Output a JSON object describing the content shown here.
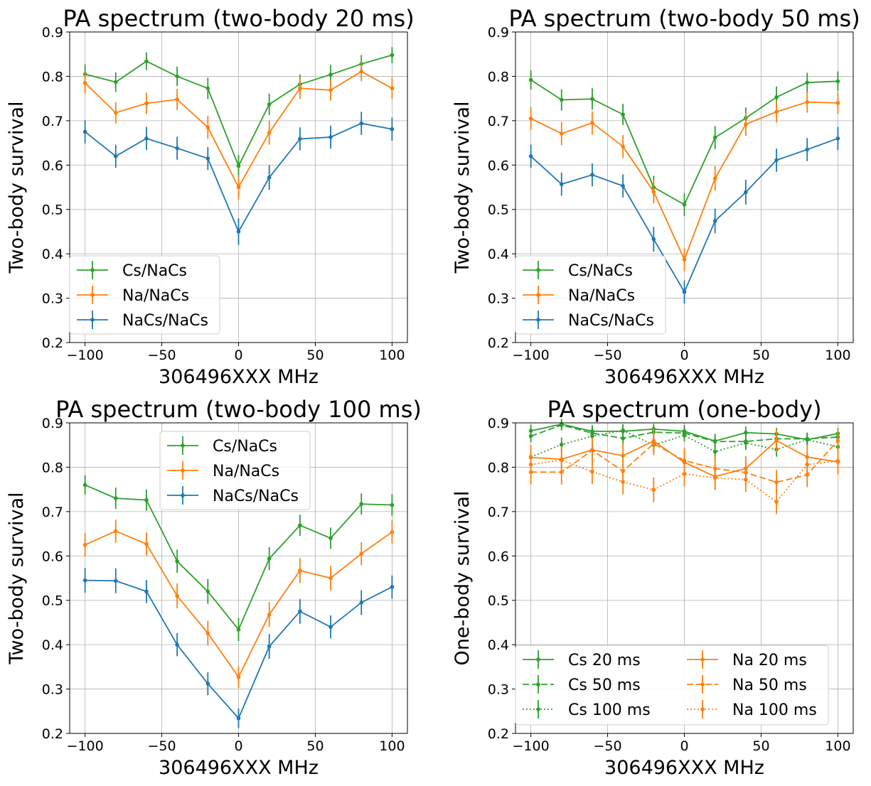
{
  "chart_data": [
    {
      "type": "line",
      "title": "PA spectrum (two-body 20 ms)",
      "xlabel": "306496XXX MHz",
      "ylabel": "Two-body survival",
      "xlim": [
        -110,
        110
      ],
      "ylim": [
        0.2,
        0.9
      ],
      "xticks": [
        -100,
        -50,
        0,
        50,
        100
      ],
      "xtick_labels": [
        "−100",
        "−50",
        "0",
        "50",
        "100"
      ],
      "yticks": [
        0.2,
        0.3,
        0.4,
        0.5,
        0.6,
        0.7,
        0.8,
        0.9
      ],
      "ytick_labels": [
        "0.2",
        "0.3",
        "0.4",
        "0.5",
        "0.6",
        "0.7",
        "0.8",
        "0.9"
      ],
      "grid": true,
      "legend": {
        "position": "lower-left",
        "columns": 1
      },
      "x": [
        -100,
        -80,
        -60,
        -40,
        -20,
        0,
        20,
        40,
        60,
        80,
        100
      ],
      "series": [
        {
          "name": "Cs/NaCs",
          "color": "#2ca02c",
          "linestyle": "solid",
          "values": [
            0.805,
            0.787,
            0.834,
            0.8,
            0.773,
            0.598,
            0.737,
            0.782,
            0.804,
            0.828,
            0.848
          ],
          "errors": [
            0.022,
            0.022,
            0.02,
            0.022,
            0.024,
            0.025,
            0.024,
            0.022,
            0.022,
            0.02,
            0.018
          ]
        },
        {
          "name": "Na/NaCs",
          "color": "#ff7f0e",
          "linestyle": "solid",
          "values": [
            0.785,
            0.718,
            0.739,
            0.748,
            0.685,
            0.55,
            0.673,
            0.773,
            0.769,
            0.811,
            0.773
          ],
          "errors": [
            0.024,
            0.024,
            0.024,
            0.024,
            0.026,
            0.028,
            0.027,
            0.024,
            0.024,
            0.022,
            0.024
          ]
        },
        {
          "name": "NaCs/NaCs",
          "color": "#1f77b4",
          "linestyle": "solid",
          "values": [
            0.675,
            0.62,
            0.66,
            0.638,
            0.615,
            0.45,
            0.572,
            0.659,
            0.663,
            0.694,
            0.681
          ],
          "errors": [
            0.026,
            0.026,
            0.026,
            0.026,
            0.026,
            0.03,
            0.028,
            0.026,
            0.026,
            0.026,
            0.026
          ]
        }
      ]
    },
    {
      "type": "line",
      "title": "PA spectrum (two-body 50 ms)",
      "xlabel": "306496XXX MHz",
      "ylabel": "Two-body survival",
      "xlim": [
        -110,
        110
      ],
      "ylim": [
        0.2,
        0.9
      ],
      "xticks": [
        -100,
        -50,
        0,
        50,
        100
      ],
      "xtick_labels": [
        "−100",
        "−50",
        "0",
        "50",
        "100"
      ],
      "yticks": [
        0.2,
        0.3,
        0.4,
        0.5,
        0.6,
        0.7,
        0.8,
        0.9
      ],
      "ytick_labels": [
        "0.2",
        "0.3",
        "0.4",
        "0.5",
        "0.6",
        "0.7",
        "0.8",
        "0.9"
      ],
      "grid": true,
      "legend": {
        "position": "lower-left",
        "columns": 1
      },
      "x": [
        -100,
        -80,
        -60,
        -40,
        -20,
        0,
        20,
        40,
        60,
        80,
        100
      ],
      "series": [
        {
          "name": "Cs/NaCs",
          "color": "#2ca02c",
          "linestyle": "solid",
          "values": [
            0.792,
            0.747,
            0.749,
            0.714,
            0.55,
            0.511,
            0.662,
            0.706,
            0.753,
            0.786,
            0.789
          ],
          "errors": [
            0.022,
            0.024,
            0.024,
            0.024,
            0.026,
            0.026,
            0.026,
            0.024,
            0.024,
            0.022,
            0.022
          ]
        },
        {
          "name": "Na/NaCs",
          "color": "#ff7f0e",
          "linestyle": "solid",
          "values": [
            0.705,
            0.671,
            0.695,
            0.642,
            0.54,
            0.387,
            0.57,
            0.692,
            0.72,
            0.742,
            0.74
          ],
          "errors": [
            0.026,
            0.026,
            0.026,
            0.026,
            0.026,
            0.026,
            0.028,
            0.026,
            0.024,
            0.024,
            0.024
          ]
        },
        {
          "name": "NaCs/NaCs",
          "color": "#1f77b4",
          "linestyle": "solid",
          "values": [
            0.62,
            0.557,
            0.578,
            0.553,
            0.433,
            0.314,
            0.474,
            0.539,
            0.611,
            0.635,
            0.66
          ],
          "errors": [
            0.026,
            0.026,
            0.026,
            0.026,
            0.028,
            0.026,
            0.028,
            0.028,
            0.026,
            0.026,
            0.026
          ]
        }
      ]
    },
    {
      "type": "line",
      "title": "PA spectrum (two-body 100 ms)",
      "xlabel": "306496XXX MHz",
      "ylabel": "Two-body survival",
      "xlim": [
        -110,
        110
      ],
      "ylim": [
        0.2,
        0.9
      ],
      "xticks": [
        -100,
        -50,
        0,
        50,
        100
      ],
      "xtick_labels": [
        "−100",
        "−50",
        "0",
        "50",
        "100"
      ],
      "yticks": [
        0.2,
        0.3,
        0.4,
        0.5,
        0.6,
        0.7,
        0.8,
        0.9
      ],
      "ytick_labels": [
        "0.2",
        "0.3",
        "0.4",
        "0.5",
        "0.6",
        "0.7",
        "0.8",
        "0.9"
      ],
      "grid": true,
      "legend": {
        "position": "upper-center",
        "columns": 1
      },
      "x": [
        -100,
        -80,
        -60,
        -40,
        -20,
        0,
        20,
        40,
        60,
        80,
        100
      ],
      "series": [
        {
          "name": "Cs/NaCs",
          "color": "#2ca02c",
          "linestyle": "solid",
          "values": [
            0.76,
            0.73,
            0.726,
            0.588,
            0.52,
            0.434,
            0.594,
            0.669,
            0.64,
            0.717,
            0.715
          ],
          "errors": [
            0.022,
            0.024,
            0.024,
            0.026,
            0.028,
            0.026,
            0.026,
            0.024,
            0.024,
            0.024,
            0.024
          ]
        },
        {
          "name": "Na/NaCs",
          "color": "#ff7f0e",
          "linestyle": "solid",
          "values": [
            0.625,
            0.656,
            0.627,
            0.51,
            0.426,
            0.327,
            0.468,
            0.567,
            0.55,
            0.605,
            0.654
          ],
          "errors": [
            0.026,
            0.026,
            0.026,
            0.028,
            0.028,
            0.024,
            0.028,
            0.028,
            0.028,
            0.026,
            0.026
          ]
        },
        {
          "name": "NaCs/NaCs",
          "color": "#1f77b4",
          "linestyle": "solid",
          "values": [
            0.545,
            0.544,
            0.52,
            0.4,
            0.312,
            0.234,
            0.396,
            0.475,
            0.44,
            0.495,
            0.53
          ],
          "errors": [
            0.028,
            0.028,
            0.026,
            0.026,
            0.026,
            0.022,
            0.028,
            0.028,
            0.026,
            0.028,
            0.026
          ]
        }
      ]
    },
    {
      "type": "line",
      "title": "PA spectrum (one-body)",
      "xlabel": "306496XXX MHz",
      "ylabel": "One-body survival",
      "xlim": [
        -110,
        110
      ],
      "ylim": [
        0.2,
        0.9
      ],
      "xticks": [
        -100,
        -50,
        0,
        50,
        100
      ],
      "xtick_labels": [
        "−100",
        "−50",
        "0",
        "50",
        "100"
      ],
      "yticks": [
        0.2,
        0.3,
        0.4,
        0.5,
        0.6,
        0.7,
        0.8,
        0.9
      ],
      "ytick_labels": [
        "0.2",
        "0.3",
        "0.4",
        "0.5",
        "0.6",
        "0.7",
        "0.8",
        "0.9"
      ],
      "grid": true,
      "legend": {
        "position": "lower-left",
        "columns": 2
      },
      "x": [
        -100,
        -80,
        -60,
        -40,
        -20,
        0,
        20,
        40,
        60,
        80,
        100
      ],
      "series": [
        {
          "name": "Cs 20 ms",
          "color": "#2ca02c",
          "linestyle": "solid",
          "values": [
            0.882,
            0.897,
            0.881,
            0.881,
            0.886,
            0.881,
            0.859,
            0.878,
            0.875,
            0.862,
            0.876
          ],
          "errors": [
            0.014,
            0.012,
            0.014,
            0.014,
            0.012,
            0.014,
            0.016,
            0.014,
            0.014,
            0.014,
            0.012
          ]
        },
        {
          "name": "Cs 50 ms",
          "color": "#2ca02c",
          "linestyle": "dashed",
          "values": [
            0.87,
            0.895,
            0.877,
            0.865,
            0.879,
            0.877,
            0.858,
            0.858,
            0.864,
            0.864,
            0.868
          ],
          "errors": [
            0.014,
            0.012,
            0.014,
            0.016,
            0.014,
            0.014,
            0.016,
            0.016,
            0.014,
            0.014,
            0.014
          ]
        },
        {
          "name": "Cs 100 ms",
          "color": "#2ca02c",
          "linestyle": "dotted",
          "values": [
            0.823,
            0.851,
            0.87,
            0.883,
            0.85,
            0.872,
            0.835,
            0.855,
            0.84,
            0.862,
            0.846
          ],
          "errors": [
            0.016,
            0.016,
            0.014,
            0.014,
            0.016,
            0.014,
            0.016,
            0.016,
            0.016,
            0.014,
            0.016
          ]
        },
        {
          "name": "Na 20 ms",
          "color": "#ff7f0e",
          "linestyle": "solid",
          "values": [
            0.822,
            0.818,
            0.839,
            0.826,
            0.859,
            0.811,
            0.779,
            0.797,
            0.86,
            0.823,
            0.812
          ],
          "errors": [
            0.028,
            0.028,
            0.028,
            0.028,
            0.028,
            0.028,
            0.028,
            0.028,
            0.026,
            0.028,
            0.028
          ]
        },
        {
          "name": "Na 50 ms",
          "color": "#ff7f0e",
          "linestyle": "dashed",
          "values": [
            0.789,
            0.789,
            0.838,
            0.791,
            0.853,
            0.815,
            0.797,
            0.788,
            0.766,
            0.783,
            0.86
          ],
          "errors": [
            0.028,
            0.028,
            0.028,
            0.028,
            0.026,
            0.028,
            0.028,
            0.028,
            0.028,
            0.028,
            0.026
          ]
        },
        {
          "name": "Na 100 ms",
          "color": "#ff7f0e",
          "linestyle": "dotted",
          "values": [
            0.806,
            0.816,
            0.79,
            0.767,
            0.749,
            0.785,
            0.776,
            0.772,
            0.722,
            0.806,
            0.814
          ],
          "errors": [
            0.028,
            0.028,
            0.028,
            0.028,
            0.028,
            0.028,
            0.028,
            0.028,
            0.028,
            0.028,
            0.028
          ]
        }
      ]
    }
  ]
}
